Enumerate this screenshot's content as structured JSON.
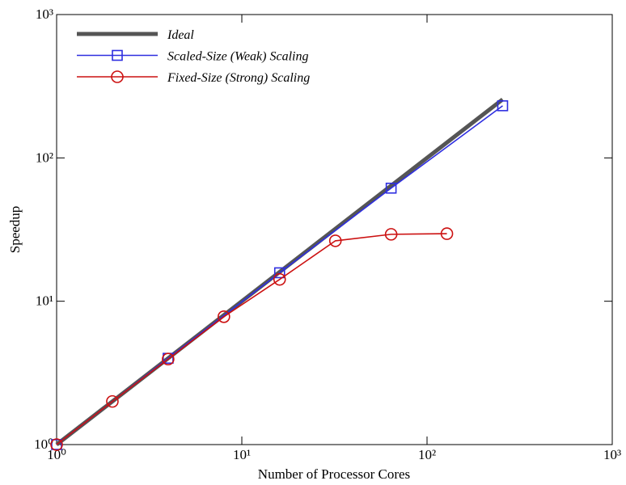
{
  "chart_data": {
    "type": "line",
    "xlabel": "Number of Processor Cores",
    "ylabel": "Speedup",
    "log_x": true,
    "log_y": true,
    "xlim": [
      1,
      1000
    ],
    "ylim": [
      1,
      1000
    ],
    "xticks": [
      {
        "value": 1,
        "label": "10⁰"
      },
      {
        "value": 10,
        "label": "10¹"
      },
      {
        "value": 100,
        "label": "10²"
      },
      {
        "value": 1000,
        "label": "10³"
      }
    ],
    "yticks": [
      {
        "value": 1,
        "label": "10⁰"
      },
      {
        "value": 10,
        "label": "10¹"
      },
      {
        "value": 100,
        "label": "10²"
      },
      {
        "value": 1000,
        "label": "10³"
      }
    ],
    "legend": "upper left",
    "series": [
      {
        "name": "Ideal",
        "color": "#555555",
        "marker": "none",
        "x": [
          1,
          256
        ],
        "values": [
          1,
          256
        ]
      },
      {
        "name": "Scaled-Size (Weak) Scaling",
        "color": "#2e2ee0",
        "marker": "square",
        "x": [
          1,
          4,
          16,
          64,
          256
        ],
        "values": [
          1,
          4,
          15.8,
          61.5,
          231
        ]
      },
      {
        "name": "Fixed-Size (Strong) Scaling",
        "color": "#cc1111",
        "marker": "circle",
        "x": [
          1,
          2,
          4,
          8,
          16,
          32,
          64,
          128
        ],
        "values": [
          1,
          2,
          3.95,
          7.8,
          14.2,
          26.4,
          29.3,
          29.6
        ]
      }
    ]
  }
}
